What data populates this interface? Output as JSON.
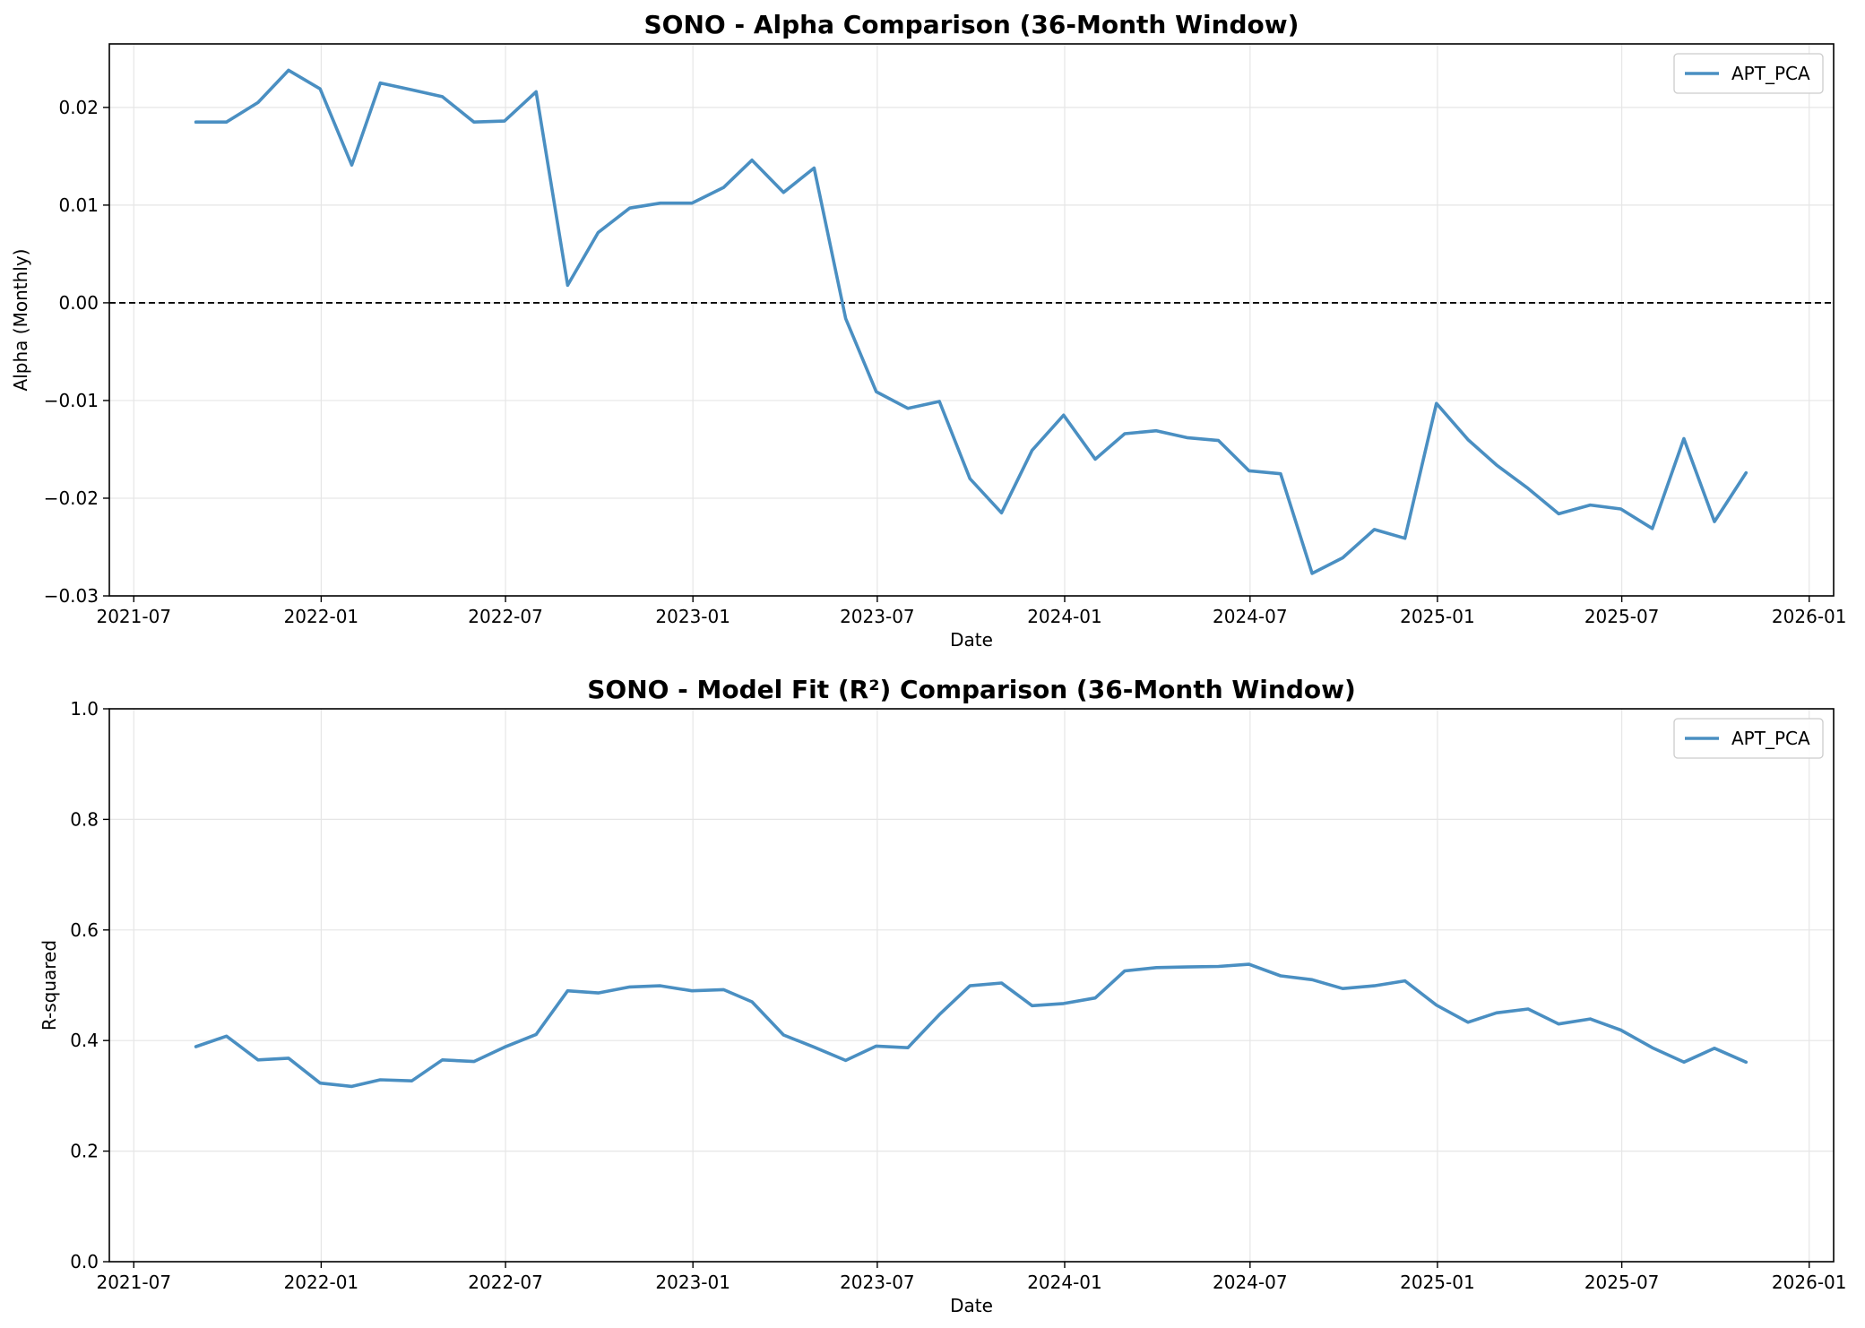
{
  "chart_data": [
    {
      "type": "line",
      "title": "SONO - Alpha Comparison (36-Month Window)",
      "xlabel": "Date",
      "ylabel": "Alpha (Monthly)",
      "xlim": [
        "2021-06-07",
        "2026-01-25"
      ],
      "ylim": [
        -0.03,
        0.0265
      ],
      "xticks": [
        "2021-07",
        "2022-01",
        "2022-07",
        "2023-01",
        "2023-07",
        "2024-01",
        "2024-07",
        "2025-01",
        "2025-07",
        "2026-01"
      ],
      "yticks": [
        -0.03,
        -0.02,
        -0.01,
        0.0,
        0.01,
        0.02
      ],
      "ytick_labels": [
        "−0.03",
        "−0.02",
        "−0.01",
        "0.00",
        "0.01",
        "0.02"
      ],
      "grid": true,
      "zero_line": true,
      "legend": "top-right",
      "series": [
        {
          "name": "APT_PCA",
          "color": "#4a8fc2",
          "x": [
            "2021-08-31",
            "2021-09-30",
            "2021-10-31",
            "2021-11-30",
            "2021-12-31",
            "2022-01-31",
            "2022-02-28",
            "2022-03-31",
            "2022-04-30",
            "2022-05-31",
            "2022-06-30",
            "2022-07-31",
            "2022-08-31",
            "2022-09-30",
            "2022-10-31",
            "2022-11-30",
            "2022-12-31",
            "2023-01-31",
            "2023-02-28",
            "2023-03-31",
            "2023-04-30",
            "2023-05-31",
            "2023-06-30",
            "2023-07-31",
            "2023-08-31",
            "2023-09-30",
            "2023-10-31",
            "2023-11-30",
            "2023-12-31",
            "2024-01-31",
            "2024-02-29",
            "2024-03-31",
            "2024-04-30",
            "2024-05-31",
            "2024-06-30",
            "2024-07-31",
            "2024-08-31",
            "2024-09-30",
            "2024-10-31",
            "2024-11-30",
            "2024-12-31",
            "2025-01-31",
            "2025-02-28",
            "2025-03-31",
            "2025-04-30",
            "2025-05-31",
            "2025-06-30",
            "2025-07-31",
            "2025-08-31",
            "2025-09-30",
            "2025-10-31"
          ],
          "values": [
            0.0185,
            0.0185,
            0.0205,
            0.0238,
            0.0219,
            0.0141,
            0.0225,
            0.0218,
            0.0211,
            0.0185,
            0.0186,
            0.0216,
            0.0018,
            0.0072,
            0.0097,
            0.0102,
            0.0102,
            0.0118,
            0.0146,
            0.0113,
            0.0138,
            -0.0016,
            -0.0091,
            -0.0108,
            -0.0101,
            -0.018,
            -0.0215,
            -0.0151,
            -0.0115,
            -0.016,
            -0.0134,
            -0.0131,
            -0.0138,
            -0.0141,
            -0.0172,
            -0.0175,
            -0.0277,
            -0.0261,
            -0.0232,
            -0.0241,
            -0.0103,
            -0.014,
            -0.0166,
            -0.019,
            -0.0216,
            -0.0207,
            -0.0211,
            -0.0231,
            -0.0139,
            -0.0224,
            -0.0174
          ]
        }
      ]
    },
    {
      "type": "line",
      "title": "SONO - Model Fit (R²) Comparison (36-Month Window)",
      "xlabel": "Date",
      "ylabel": "R-squared",
      "xlim": [
        "2021-06-07",
        "2026-01-25"
      ],
      "ylim": [
        0.0,
        1.0
      ],
      "xticks": [
        "2021-07",
        "2022-01",
        "2022-07",
        "2023-01",
        "2023-07",
        "2024-01",
        "2024-07",
        "2025-01",
        "2025-07",
        "2026-01"
      ],
      "yticks": [
        0.0,
        0.2,
        0.4,
        0.6,
        0.8,
        1.0
      ],
      "ytick_labels": [
        "0.0",
        "0.2",
        "0.4",
        "0.6",
        "0.8",
        "1.0"
      ],
      "grid": true,
      "legend": "top-right",
      "series": [
        {
          "name": "APT_PCA",
          "color": "#4a8fc2",
          "x": [
            "2021-08-31",
            "2021-09-30",
            "2021-10-31",
            "2021-11-30",
            "2021-12-31",
            "2022-01-31",
            "2022-02-28",
            "2022-03-31",
            "2022-04-30",
            "2022-05-31",
            "2022-06-30",
            "2022-07-31",
            "2022-08-31",
            "2022-09-30",
            "2022-10-31",
            "2022-11-30",
            "2022-12-31",
            "2023-01-31",
            "2023-02-28",
            "2023-03-31",
            "2023-04-30",
            "2023-05-31",
            "2023-06-30",
            "2023-07-31",
            "2023-08-31",
            "2023-09-30",
            "2023-10-31",
            "2023-11-30",
            "2023-12-31",
            "2024-01-31",
            "2024-02-29",
            "2024-03-31",
            "2024-04-30",
            "2024-05-31",
            "2024-06-30",
            "2024-07-31",
            "2024-08-31",
            "2024-09-30",
            "2024-10-31",
            "2024-11-30",
            "2024-12-31",
            "2025-01-31",
            "2025-02-28",
            "2025-03-31",
            "2025-04-30",
            "2025-05-31",
            "2025-06-30",
            "2025-07-31",
            "2025-08-31",
            "2025-09-30",
            "2025-10-31"
          ],
          "values": [
            0.389,
            0.408,
            0.365,
            0.368,
            0.323,
            0.317,
            0.329,
            0.327,
            0.365,
            0.362,
            0.388,
            0.411,
            0.49,
            0.486,
            0.497,
            0.499,
            0.49,
            0.492,
            0.47,
            0.41,
            0.388,
            0.364,
            0.39,
            0.387,
            0.447,
            0.499,
            0.504,
            0.463,
            0.467,
            0.477,
            0.526,
            0.532,
            0.533,
            0.534,
            0.538,
            0.517,
            0.51,
            0.494,
            0.499,
            0.508,
            0.464,
            0.433,
            0.45,
            0.457,
            0.43,
            0.439,
            0.419,
            0.387,
            0.361,
            0.386,
            0.361
          ]
        }
      ]
    }
  ]
}
